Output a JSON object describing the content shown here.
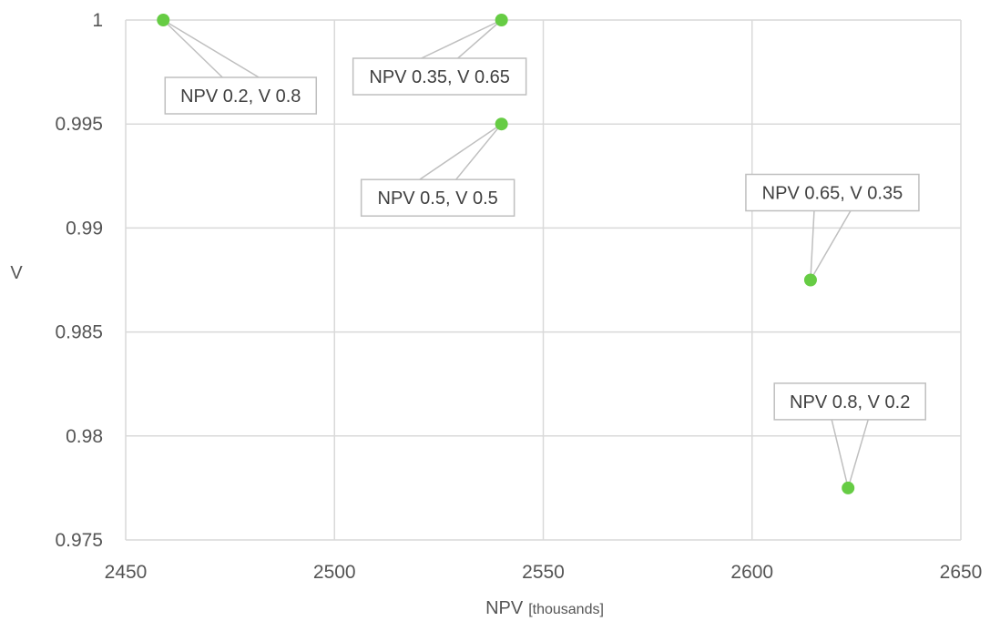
{
  "chart_data": {
    "type": "scatter",
    "title": "",
    "xlabel": "NPV",
    "xlabel_unit": "[thousands]",
    "ylabel": "V",
    "xlim": [
      2450,
      2650
    ],
    "ylim": [
      0.975,
      1.0
    ],
    "x_ticks": [
      "2450",
      "2500",
      "2550",
      "2600",
      "2650"
    ],
    "y_ticks": [
      "0.975",
      "0.98",
      "0.985",
      "0.99",
      "0.995",
      "1"
    ],
    "grid": true,
    "legend": "none",
    "series": [
      {
        "color": "#66cc44",
        "points": [
          {
            "x": 2459,
            "y": 1.0,
            "label": "NPV 0.2, V 0.8"
          },
          {
            "x": 2540,
            "y": 1.0,
            "label": "NPV 0.35, V 0.65"
          },
          {
            "x": 2540,
            "y": 0.995,
            "label": "NPV 0.5, V 0.5"
          },
          {
            "x": 2614,
            "y": 0.9875,
            "label": "NPV 0.65, V 0.35"
          },
          {
            "x": 2623,
            "y": 0.9775,
            "label": "NPV 0.8, V 0.2"
          }
        ]
      }
    ]
  }
}
